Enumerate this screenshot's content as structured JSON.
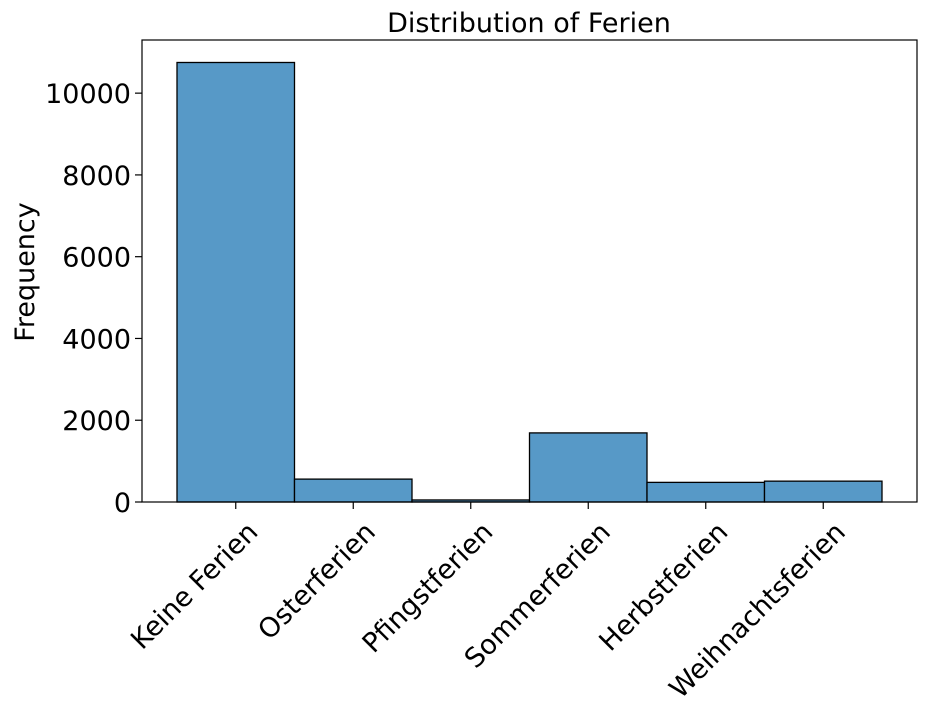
{
  "chart_data": {
    "type": "bar",
    "title": "Distribution of Ferien",
    "xlabel": "",
    "ylabel": "Frequency",
    "categories": [
      "Keine Ferien",
      "Osterferien",
      "Pfingstferien",
      "Sommerferien",
      "Herbstferien",
      "Weihnachtsferien"
    ],
    "values": [
      10750,
      560,
      50,
      1690,
      480,
      510
    ],
    "ylim": [
      0,
      11300
    ],
    "yticks": [
      0,
      2000,
      4000,
      6000,
      8000,
      10000
    ],
    "grid": false,
    "legend": "none",
    "bar_color": "#5799c7",
    "edge_color": "#000000"
  }
}
